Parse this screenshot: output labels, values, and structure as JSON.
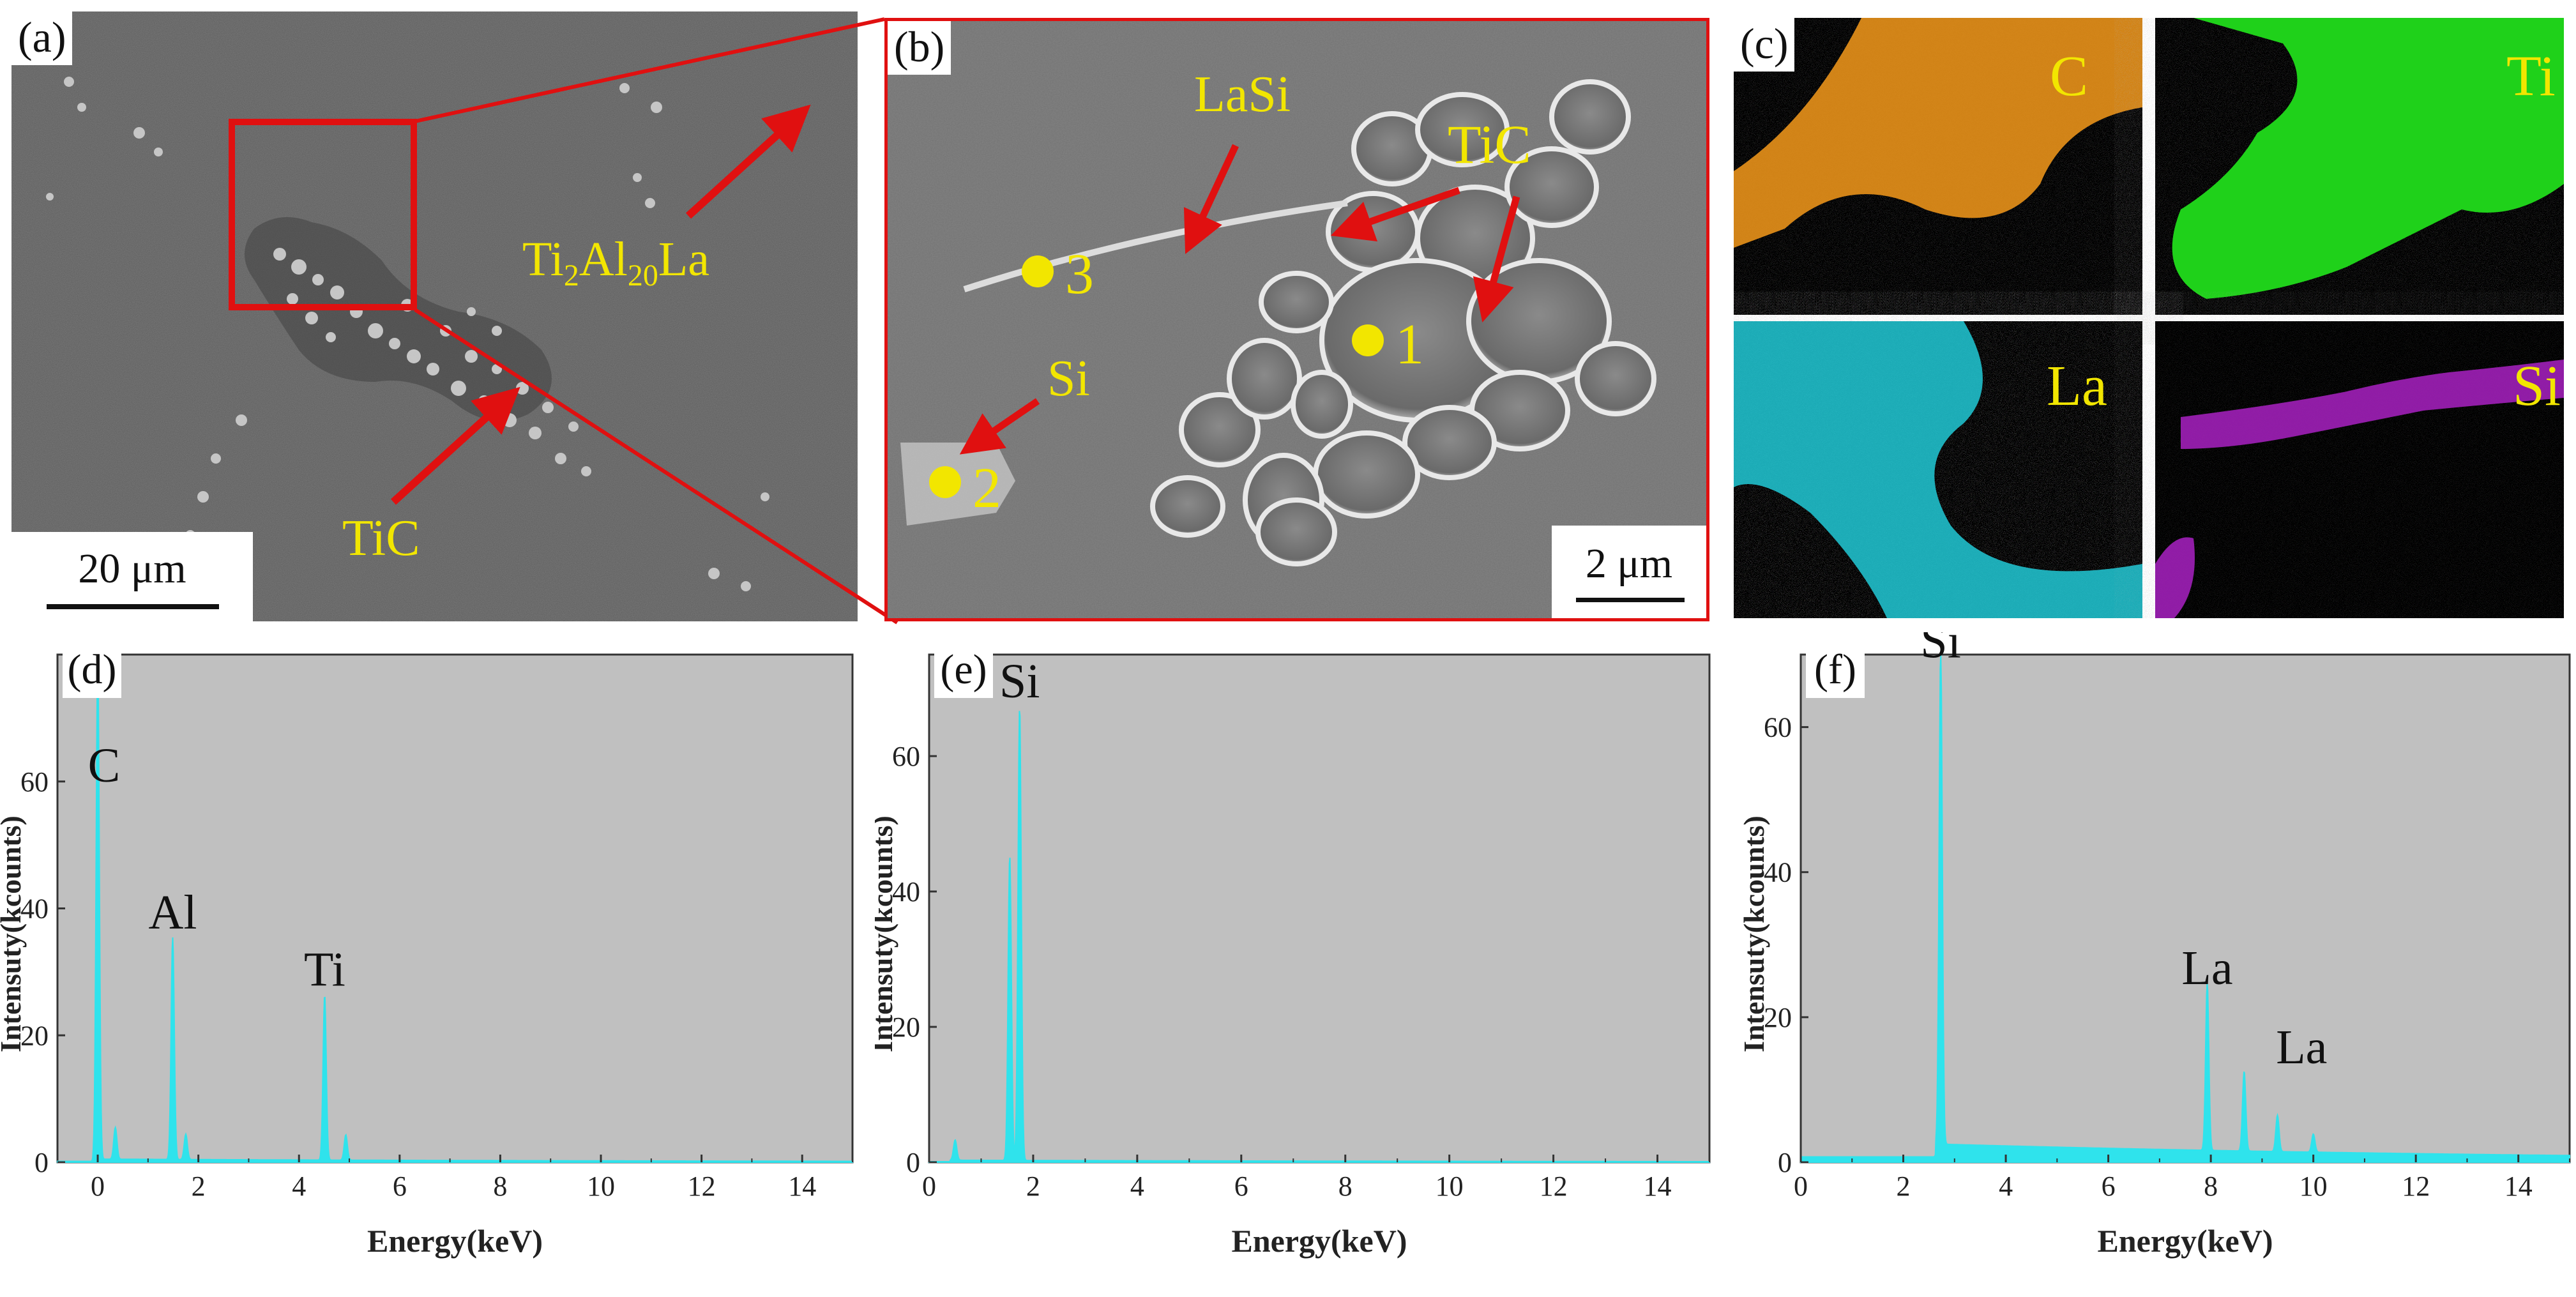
{
  "colors": {
    "annotation_yellow": "#f2e600",
    "arrow_red": "#e01010",
    "plot_bg": "#c0c0c0",
    "spectrum_cyan": "#2fe3ec",
    "map_C": "#e8921a",
    "map_Ti": "#1fd11a",
    "map_La": "#21c9d6",
    "map_Si": "#a020b8"
  },
  "panel_a": {
    "tag": "(a)",
    "label_matrix": "Ti",
    "label_matrix_sub1": "2",
    "label_matrix_mid": "Al",
    "label_matrix_sub2": "20",
    "label_matrix_end": "La",
    "label_tic": "TiC",
    "scalebar": "20 μm"
  },
  "panel_b": {
    "tag": "(b)",
    "label_lasi": "LaSi",
    "label_tic": "TiC",
    "label_si": "Si",
    "point1": "1",
    "point2": "2",
    "point3": "3",
    "scalebar": "2 μm"
  },
  "panel_c": {
    "tag": "(c)",
    "maps": [
      {
        "element": "C"
      },
      {
        "element": "Ti"
      },
      {
        "element": "La"
      },
      {
        "element": "Si"
      }
    ]
  },
  "chart_data": [
    {
      "type": "area",
      "panel_tag": "(d)",
      "xlabel": "Energy(keV)",
      "ylabel": "Intensuty(kcounts)",
      "xlim": [
        -0.8,
        15
      ],
      "ylim": [
        0,
        80
      ],
      "xticks": [
        "0",
        "2",
        "4",
        "6",
        "8",
        "10",
        "12",
        "14"
      ],
      "yticks": [
        "0",
        "20",
        "40",
        "60"
      ],
      "peaks": [
        {
          "x": 0.0,
          "y": 80,
          "label": "C"
        },
        {
          "x": 0.35,
          "y": 5
        },
        {
          "x": 1.49,
          "y": 35,
          "label": "Al"
        },
        {
          "x": 1.75,
          "y": 4
        },
        {
          "x": 4.51,
          "y": 26,
          "label": "Ti"
        },
        {
          "x": 4.93,
          "y": 4
        }
      ],
      "baseline": 0.5
    },
    {
      "type": "area",
      "panel_tag": "(e)",
      "xlabel": "Energy(keV)",
      "ylabel": "Intensuty(kcounts)",
      "xlim": [
        0,
        15
      ],
      "ylim": [
        0,
        75
      ],
      "xticks": [
        "0",
        "2",
        "4",
        "6",
        "8",
        "10",
        "12",
        "14"
      ],
      "yticks": [
        "0",
        "20",
        "40",
        "60"
      ],
      "peaks": [
        {
          "x": 0.5,
          "y": 3
        },
        {
          "x": 1.55,
          "y": 45
        },
        {
          "x": 1.74,
          "y": 67,
          "label": "Si"
        }
      ],
      "baseline": 0.3
    },
    {
      "type": "area",
      "panel_tag": "(f)",
      "xlabel": "Energy(keV)",
      "ylabel": "Intensuty(kcounts)",
      "xlim": [
        0,
        15
      ],
      "ylim": [
        0,
        70
      ],
      "xticks": [
        "0",
        "2",
        "4",
        "6",
        "8",
        "10",
        "12",
        "14"
      ],
      "yticks": [
        "0",
        "20",
        "40",
        "60"
      ],
      "peaks": [
        {
          "x": 2.73,
          "y": 68,
          "label": "Si"
        },
        {
          "x": 7.93,
          "y": 23,
          "label": "La"
        },
        {
          "x": 8.65,
          "y": 11,
          "label": "La"
        },
        {
          "x": 9.3,
          "y": 5
        },
        {
          "x": 10.0,
          "y": 2.5
        }
      ],
      "baseline": 2.5
    }
  ]
}
